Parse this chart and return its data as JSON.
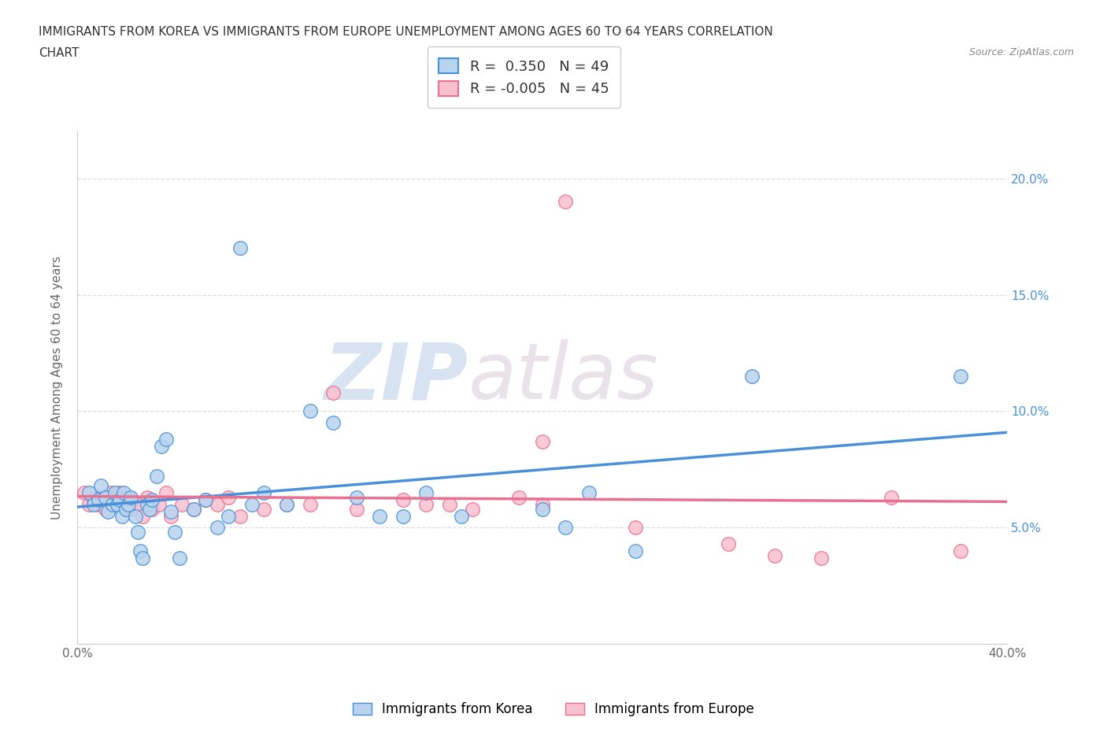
{
  "title_line1": "IMMIGRANTS FROM KOREA VS IMMIGRANTS FROM EUROPE UNEMPLOYMENT AMONG AGES 60 TO 64 YEARS CORRELATION",
  "title_line2": "CHART",
  "source_text": "Source: ZipAtlas.com",
  "ylabel": "Unemployment Among Ages 60 to 64 years",
  "xlim": [
    0.0,
    0.4
  ],
  "ylim": [
    0.0,
    0.22
  ],
  "ytick_positions": [
    0.05,
    0.1,
    0.15,
    0.2
  ],
  "ytick_labels": [
    "5.0%",
    "10.0%",
    "15.0%",
    "20.0%"
  ],
  "xtick_positions": [
    0.0,
    0.05,
    0.1,
    0.15,
    0.2,
    0.25,
    0.3,
    0.35,
    0.4
  ],
  "xtick_labels": [
    "0.0%",
    "",
    "",
    "",
    "",
    "",
    "",
    "",
    "40.0%"
  ],
  "korea_R": " 0.350",
  "korea_N": 49,
  "europe_R": "-0.005",
  "europe_N": 45,
  "korea_fill": "#b8d4ee",
  "europe_fill": "#f9c0d0",
  "korea_edge": "#4a90d9",
  "europe_edge": "#e87090",
  "watermark_zip": "ZIP",
  "watermark_atlas": "atlas",
  "legend_korea_label": "Immigrants from Korea",
  "legend_europe_label": "Immigrants from Europe",
  "korea_x": [
    0.005,
    0.007,
    0.009,
    0.01,
    0.012,
    0.013,
    0.015,
    0.016,
    0.017,
    0.018,
    0.019,
    0.02,
    0.021,
    0.022,
    0.023,
    0.025,
    0.026,
    0.027,
    0.028,
    0.03,
    0.031,
    0.032,
    0.034,
    0.036,
    0.038,
    0.04,
    0.042,
    0.044,
    0.05,
    0.055,
    0.06,
    0.065,
    0.07,
    0.075,
    0.08,
    0.09,
    0.1,
    0.11,
    0.12,
    0.13,
    0.14,
    0.15,
    0.165,
    0.2,
    0.21,
    0.22,
    0.24,
    0.29,
    0.38
  ],
  "korea_y": [
    0.065,
    0.06,
    0.062,
    0.068,
    0.063,
    0.057,
    0.06,
    0.065,
    0.06,
    0.062,
    0.055,
    0.065,
    0.058,
    0.06,
    0.063,
    0.055,
    0.048,
    0.04,
    0.037,
    0.06,
    0.058,
    0.062,
    0.072,
    0.085,
    0.088,
    0.057,
    0.048,
    0.037,
    0.058,
    0.062,
    0.05,
    0.055,
    0.17,
    0.06,
    0.065,
    0.06,
    0.1,
    0.095,
    0.063,
    0.055,
    0.055,
    0.065,
    0.055,
    0.058,
    0.05,
    0.065,
    0.04,
    0.115,
    0.115
  ],
  "europe_x": [
    0.003,
    0.005,
    0.007,
    0.009,
    0.01,
    0.012,
    0.014,
    0.016,
    0.017,
    0.018,
    0.02,
    0.022,
    0.024,
    0.026,
    0.028,
    0.03,
    0.032,
    0.035,
    0.038,
    0.04,
    0.045,
    0.05,
    0.055,
    0.06,
    0.065,
    0.07,
    0.08,
    0.09,
    0.1,
    0.11,
    0.12,
    0.14,
    0.16,
    0.17,
    0.19,
    0.2,
    0.21,
    0.24,
    0.28,
    0.3,
    0.32,
    0.35,
    0.38,
    0.2,
    0.15
  ],
  "europe_y": [
    0.065,
    0.06,
    0.062,
    0.06,
    0.063,
    0.058,
    0.065,
    0.062,
    0.06,
    0.065,
    0.06,
    0.063,
    0.058,
    0.06,
    0.055,
    0.063,
    0.058,
    0.06,
    0.065,
    0.055,
    0.06,
    0.058,
    0.062,
    0.06,
    0.063,
    0.055,
    0.058,
    0.06,
    0.06,
    0.108,
    0.058,
    0.062,
    0.06,
    0.058,
    0.063,
    0.06,
    0.19,
    0.05,
    0.043,
    0.038,
    0.037,
    0.063,
    0.04,
    0.087,
    0.06
  ]
}
